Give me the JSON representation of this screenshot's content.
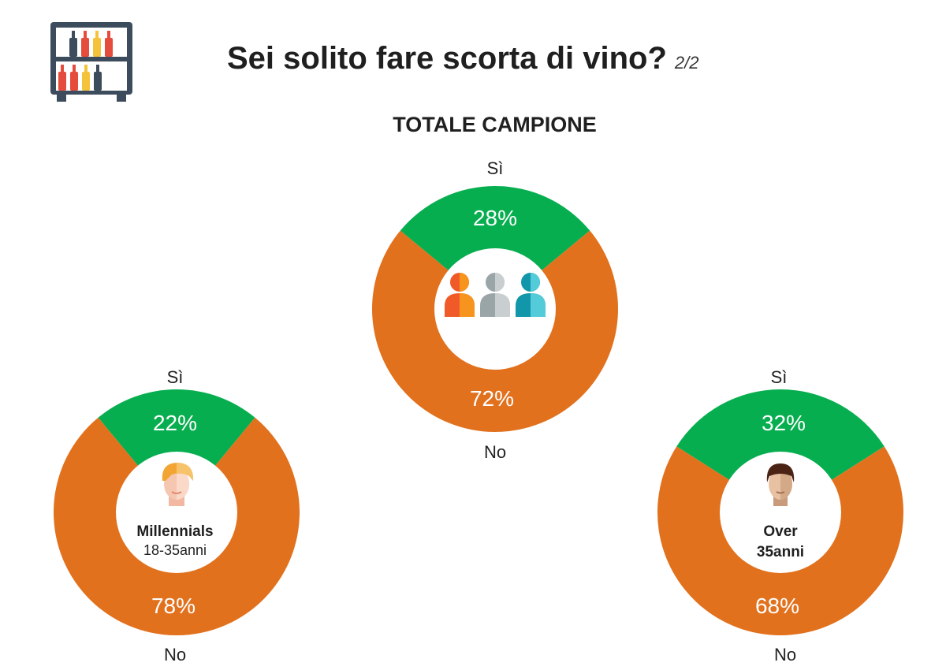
{
  "header": {
    "title": "Sei solito fare scorta di vino?",
    "page": "2/2",
    "icon": "wine-rack-icon"
  },
  "section_title": "TOTALE CAMPIONE",
  "colors": {
    "yes": "#07ae4f",
    "no": "#e2711d"
  },
  "chart_data": [
    {
      "type": "pie",
      "name": "Totale campione",
      "categories": [
        "Sì",
        "No"
      ],
      "values": [
        28,
        72
      ],
      "labels": [
        "28%",
        "72%"
      ],
      "icon": "group-of-people-icon",
      "center_title": "",
      "center_subtitle": ""
    },
    {
      "type": "pie",
      "name": "Millennials",
      "categories": [
        "Sì",
        "No"
      ],
      "values": [
        22,
        78
      ],
      "labels": [
        "22%",
        "78%"
      ],
      "icon": "young-person-icon",
      "center_title": "Millennials",
      "center_subtitle": "18-35anni"
    },
    {
      "type": "pie",
      "name": "Over 35anni",
      "categories": [
        "Sì",
        "No"
      ],
      "values": [
        32,
        68
      ],
      "labels": [
        "32%",
        "68%"
      ],
      "icon": "adult-person-icon",
      "center_title": "Over",
      "center_subtitle": "35anni"
    }
  ]
}
